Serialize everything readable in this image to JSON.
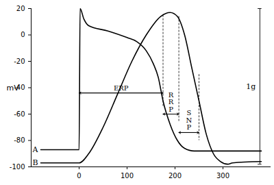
{
  "chart_data": {
    "type": "line",
    "y_label": "mV",
    "xlim": [
      -100,
      400
    ],
    "xticks": [
      0,
      100,
      200,
      300
    ],
    "ylim": [
      -100,
      20
    ],
    "yticks": [
      -100,
      -80,
      -60,
      -40,
      -20,
      0,
      20
    ],
    "grid": false,
    "series": [
      {
        "name": "A",
        "color": "#000000",
        "x": [
          -80,
          0,
          2,
          10,
          20,
          60,
          100,
          120,
          140,
          155,
          165,
          175,
          190,
          205,
          220,
          240,
          380
        ],
        "values": [
          -87,
          -87,
          20,
          12,
          7,
          3,
          -2,
          -5,
          -12,
          -22,
          -32,
          -50,
          -68,
          -80,
          -86,
          -88,
          -88
        ]
      },
      {
        "name": "B",
        "color": "#000000",
        "x": [
          -80,
          0,
          20,
          50,
          80,
          110,
          140,
          170,
          190,
          205,
          220,
          235,
          250,
          265,
          280,
          295,
          310,
          320,
          380
        ],
        "values": [
          -97,
          -97,
          -90,
          -70,
          -45,
          -20,
          0,
          14,
          17,
          14,
          0,
          -25,
          -50,
          -75,
          -90,
          -96,
          -98,
          -97,
          -96
        ]
      }
    ],
    "intervals": [
      {
        "label": "ERP",
        "start": 0,
        "end": 175,
        "y": -44
      },
      {
        "label": "RRP",
        "start": 175,
        "end": 208,
        "y": -60
      },
      {
        "label": "SNP",
        "start": 208,
        "end": 250,
        "y": -74
      }
    ],
    "dashed_lines": [
      {
        "x": 175,
        "y": [
          15,
          -55
        ]
      },
      {
        "x": 208,
        "y": [
          14,
          -66
        ]
      },
      {
        "x": 250,
        "y": [
          -30,
          -80
        ]
      }
    ],
    "scale_bar": {
      "label": "1g",
      "x": 377,
      "y": [
        -98,
        20
      ]
    }
  }
}
